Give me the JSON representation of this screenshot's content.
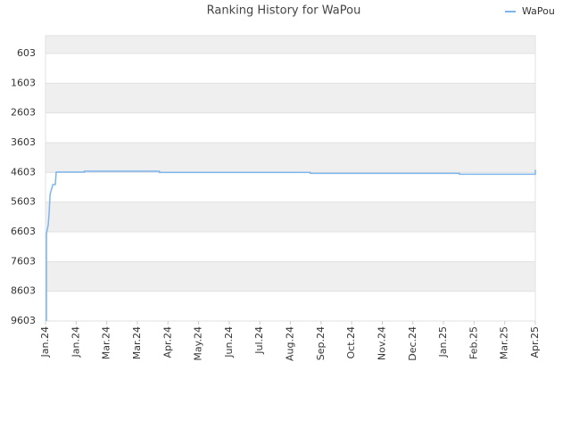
{
  "chart_data": {
    "type": "line",
    "title": "Ranking History for WaPou",
    "x": [
      0.03,
      0.03,
      0.09,
      0.12,
      0.15,
      0.24,
      0.32,
      0.35,
      1.27,
      1.27,
      3.72,
      3.72,
      8.65,
      8.65,
      13.52,
      13.52,
      16.0,
      16.0
    ],
    "series": [
      {
        "name": "WaPou",
        "color": "#7cb5ec",
        "values": [
          9603,
          6663,
          6363,
          5943,
          5343,
          5013,
          5013,
          4593,
          4593,
          4563,
          4563,
          4603,
          4603,
          4633,
          4633,
          4663,
          4663,
          4513
        ]
      }
    ],
    "xlim": [
      0,
      16
    ],
    "xticks": [
      {
        "value": 0,
        "label": "Jan.24"
      },
      {
        "value": 1,
        "label": "Jan.24"
      },
      {
        "value": 2,
        "label": "Mar.24"
      },
      {
        "value": 3,
        "label": "Mar.24"
      },
      {
        "value": 4,
        "label": "Apr.24"
      },
      {
        "value": 5,
        "label": "May.24"
      },
      {
        "value": 6,
        "label": "Jun.24"
      },
      {
        "value": 7,
        "label": "Jul.24"
      },
      {
        "value": 8,
        "label": "Aug.24"
      },
      {
        "value": 9,
        "label": "Sep.24"
      },
      {
        "value": 10,
        "label": "Oct.24"
      },
      {
        "value": 11,
        "label": "Nov.24"
      },
      {
        "value": 12,
        "label": "Dec.24"
      },
      {
        "value": 13,
        "label": "Jan.25"
      },
      {
        "value": 14,
        "label": "Feb.25"
      },
      {
        "value": 15,
        "label": "Mar.25"
      },
      {
        "value": 16,
        "label": "Apr.25"
      }
    ],
    "ylim": [
      3,
      9603
    ],
    "inverted": true,
    "yticks": [
      603,
      1603,
      2603,
      3603,
      4603,
      5603,
      6603,
      7603,
      8603,
      9603
    ],
    "grid": true,
    "legend": "top-right"
  }
}
